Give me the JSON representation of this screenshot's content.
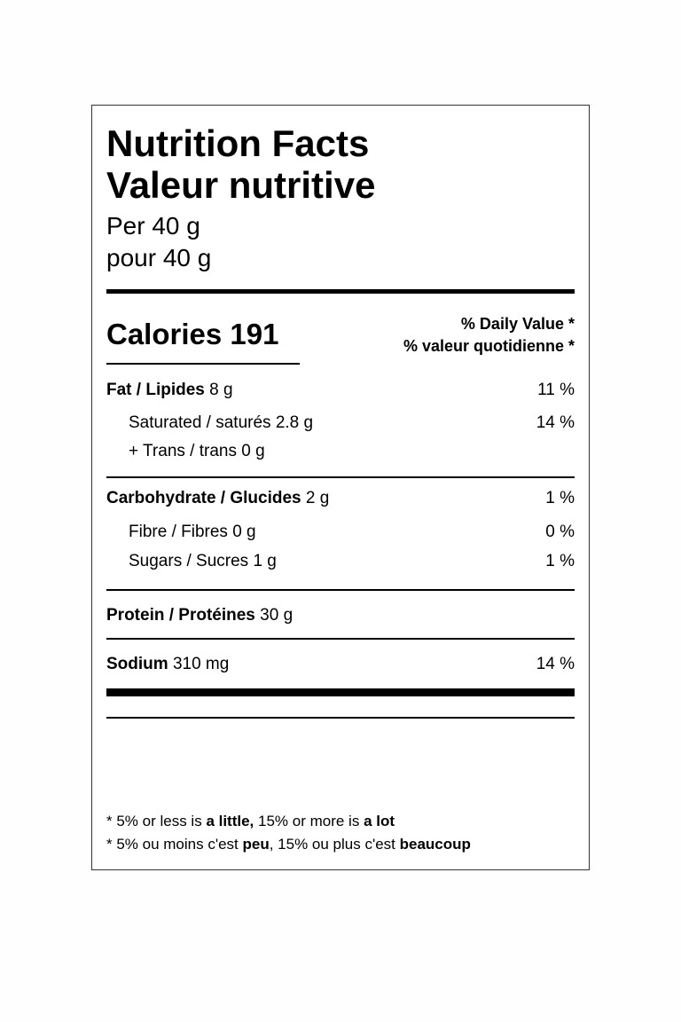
{
  "header": {
    "title_en": "Nutrition Facts",
    "title_fr": "Valeur nutritive",
    "serving_en": "Per 40 g",
    "serving_fr": "pour 40 g"
  },
  "calories": {
    "label": "Calories",
    "value": "191"
  },
  "daily_value": {
    "en": "% Daily Value *",
    "fr": "% valeur quotidienne *"
  },
  "nutrients": {
    "fat": {
      "label": "Fat / Lipides",
      "amount": "8 g",
      "dv": "11 %"
    },
    "saturated": {
      "label": "Saturated / saturés",
      "amount": "2.8 g",
      "dv": "14 %"
    },
    "trans": {
      "label": "+ Trans / trans",
      "amount": "0 g"
    },
    "carbohydrate": {
      "label": "Carbohydrate / Glucides",
      "amount": "2 g",
      "dv": "1 %"
    },
    "fibre": {
      "label": "Fibre / Fibres",
      "amount": "0 g",
      "dv": "0 %"
    },
    "sugars": {
      "label": "Sugars / Sucres",
      "amount": "1 g",
      "dv": "1 %"
    },
    "protein": {
      "label": "Protein / Protéines",
      "amount": "30 g"
    },
    "sodium": {
      "label": "Sodium",
      "amount": "310 mg",
      "dv": "14 %"
    }
  },
  "footnote": {
    "en": {
      "p1": "* 5% or less is ",
      "b1": "a little,",
      "p2": " 15% or more is ",
      "b2": "a lot"
    },
    "fr": {
      "p1": "* 5% ou moins c'est ",
      "b1": "peu",
      "p2": ", 15% ou plus c'est ",
      "b2": "beaucoup"
    }
  }
}
